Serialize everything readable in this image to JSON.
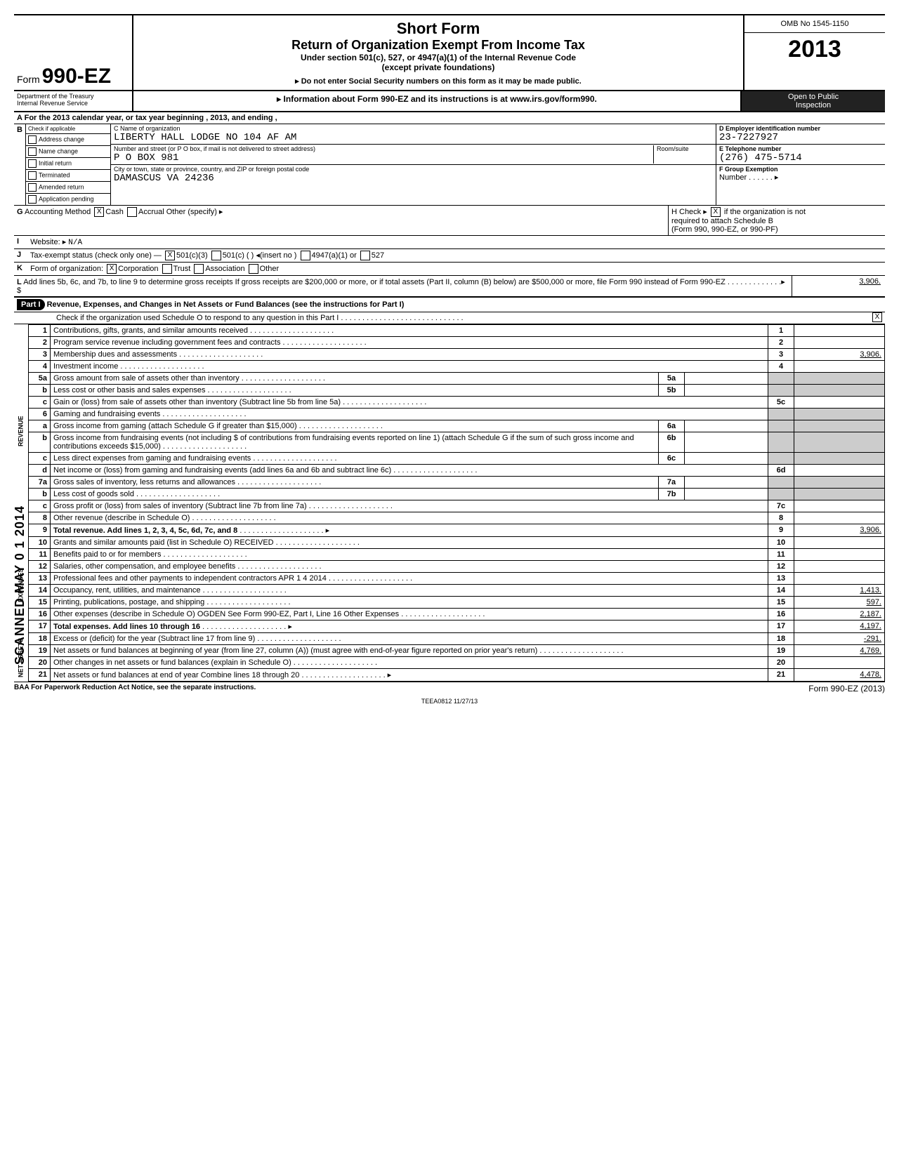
{
  "form": {
    "prefix": "Form",
    "number": "990-EZ",
    "title1": "Short Form",
    "title2": "Return of Organization Exempt From Income Tax",
    "subtitle1": "Under section 501(c), 527, or 4947(a)(1) of the Internal Revenue Code",
    "subtitle2": "(except private foundations)",
    "warn": "Do not enter Social Security numbers on this form as it may be made public.",
    "info": "Information about Form 990-EZ and its instructions is at www.irs.gov/form990.",
    "omb": "OMB No  1545-1150",
    "year": "2013",
    "dept1": "Department of the Treasury",
    "dept2": "Internal Revenue Service",
    "open1": "Open to Public",
    "open2": "Inspection"
  },
  "A": "For the 2013 calendar year, or tax year beginning                                                     , 2013, and ending                                      ,",
  "B": {
    "label": "Check if applicable",
    "items": [
      "Address change",
      "Name change",
      "Initial return",
      "Terminated",
      "Amended return",
      "Application pending"
    ]
  },
  "C": {
    "name_lbl": "C   Name of organization",
    "name": "LIBERTY HALL LODGE NO 104 AF AM",
    "street_lbl": "Number and street (or P O  box, if mail is not delivered to street address)",
    "room_lbl": "Room/suite",
    "street": "P O BOX 981",
    "city_lbl": "City or town, state or province, country, and ZIP or foreign postal code",
    "city": "DAMASCUS                                                              VA  24236"
  },
  "D": {
    "lbl": "D   Employer identification number",
    "val": "23-7227927"
  },
  "E": {
    "lbl": "E   Telephone number",
    "val": "(276) 475-5714"
  },
  "F": {
    "lbl": "F   Group Exemption",
    "lbl2": "Number . . . . . .    ▸"
  },
  "G": {
    "lead": "G",
    "label": "Accounting Method",
    "opts": [
      "Cash",
      "Accrual",
      "Other (specify)  ▸"
    ],
    "checked": 0
  },
  "I": {
    "lead": "I",
    "label": "Website: ▸",
    "val": "N/A"
  },
  "J": {
    "lead": "J",
    "label": "Tax-exempt status (check only one) —",
    "opts": [
      "501(c)(3)",
      "501(c) (          )  ◂(insert no )",
      "4947(a)(1) or",
      "527"
    ],
    "checked": 0
  },
  "K": {
    "lead": "K",
    "label": "Form of organization:",
    "opts": [
      "Corporation",
      "Trust",
      "Association",
      "Other"
    ],
    "checked": 0
  },
  "H": {
    "text1": "H  Check ▸",
    "text2": "if the organization is not",
    "text3": "required to attach Schedule B",
    "text4": "(Form 990, 990-EZ, or 990-PF)"
  },
  "L": {
    "lead": "L",
    "text": "Add lines 5b, 6c, and 7b, to line 9 to determine gross receipts  If gross receipts are $200,000 or more, or if total assets (Part II, column (B) below) are $500,000 or more, file Form 990 instead of Form 990-EZ . . . . . . . . . . . . .▸ $",
    "val": "3,906."
  },
  "part1": {
    "head": "Part I",
    "title": "Revenue, Expenses, and Changes in Net Assets or Fund Balances (see the instructions for Part I)",
    "check": "Check if the organization used Schedule O to respond to any question in this Part I . . . . . . . . . . . . . . . . . . . . . . . . . . . . .",
    "checkval": "X"
  },
  "sections": {
    "revenue": "REVENUE",
    "expenses": "EXPENSES",
    "assets": "NET ASSETS"
  },
  "stamp": {
    "scanned": "SCANNED MAY 0 1 2014",
    "received": "RECEIVED",
    "date": "APR 1 4 2014",
    "ogden": "OGDEN",
    "ogden2": "See Form 990-EZ, Part I, Line 16 Other Expenses"
  },
  "rows": [
    {
      "n": "1",
      "d": "Contributions, gifts, grants, and similar amounts received",
      "num": "1",
      "amt": ""
    },
    {
      "n": "2",
      "d": "Program service revenue including government fees and contracts",
      "num": "2",
      "amt": ""
    },
    {
      "n": "3",
      "d": "Membership dues and assessments",
      "num": "3",
      "amt": "3,906."
    },
    {
      "n": "4",
      "d": "Investment income",
      "num": "4",
      "amt": ""
    },
    {
      "n": "5a",
      "d": "Gross amount from sale of assets other than inventory",
      "sub": "5a",
      "samt": ""
    },
    {
      "n": "b",
      "d": "Less  cost or other basis and sales expenses",
      "sub": "5b",
      "samt": ""
    },
    {
      "n": "c",
      "d": "Gain or (loss) from sale of assets other than inventory (Subtract line 5b from line 5a)",
      "num": "5c",
      "amt": ""
    },
    {
      "n": "6",
      "d": "Gaming and fundraising events",
      "head": true
    },
    {
      "n": "a",
      "d": "Gross income from gaming (attach Schedule G if greater than $15,000)",
      "sub": "6a",
      "samt": ""
    },
    {
      "n": "b",
      "d": "Gross income from fundraising events (not including     $                                  of contributions from fundraising events reported on line 1) (attach Schedule G if the sum of such gross income and contributions exceeds $15,000)",
      "sub": "6b",
      "samt": ""
    },
    {
      "n": "c",
      "d": "Less  direct expenses from gaming and fundraising events",
      "sub": "6c",
      "samt": ""
    },
    {
      "n": "d",
      "d": "Net income or (loss) from gaming and fundraising events (add lines 6a and 6b and subtract line 6c)",
      "num": "6d",
      "amt": ""
    },
    {
      "n": "7a",
      "d": "Gross sales of inventory, less returns and allowances",
      "sub": "7a",
      "samt": ""
    },
    {
      "n": "b",
      "d": "Less  cost of goods sold",
      "sub": "7b",
      "samt": ""
    },
    {
      "n": "c",
      "d": "Gross profit or (loss) from sales of inventory (Subtract line 7b from line 7a)",
      "num": "7c",
      "amt": ""
    },
    {
      "n": "8",
      "d": "Other revenue (describe in Schedule O)",
      "num": "8",
      "amt": ""
    },
    {
      "n": "9",
      "d": "Total revenue. Add lines 1, 2, 3, 4, 5c, 6d, 7c, and 8",
      "num": "9",
      "amt": "3,906.",
      "bold": true,
      "arrow": true
    },
    {
      "n": "10",
      "d": "Grants and similar amounts paid (list in Schedule O)",
      "num": "10",
      "amt": "",
      "stamp": "RECEIVED"
    },
    {
      "n": "11",
      "d": "Benefits paid to or for members",
      "num": "11",
      "amt": ""
    },
    {
      "n": "12",
      "d": "Salaries, other compensation, and employee benefits",
      "num": "12",
      "amt": ""
    },
    {
      "n": "13",
      "d": "Professional fees and other payments to independent contractors   APR 1 4 2014",
      "num": "13",
      "amt": ""
    },
    {
      "n": "14",
      "d": "Occupancy, rent, utilities, and maintenance",
      "num": "14",
      "amt": "1,413."
    },
    {
      "n": "15",
      "d": "Printing, publications, postage, and shipping",
      "num": "15",
      "amt": "597."
    },
    {
      "n": "16",
      "d": "Other expenses (describe in Schedule O)                OGDEN See Form 990-EZ, Part I, Line 16 Other Expenses",
      "num": "16",
      "amt": "2,187."
    },
    {
      "n": "17",
      "d": "Total expenses. Add lines 10 through 16",
      "num": "17",
      "amt": "4,197.",
      "bold": true,
      "arrow": true
    },
    {
      "n": "18",
      "d": "Excess or (deficit) for the year (Subtract line 17 from line 9)",
      "num": "18",
      "amt": "-291."
    },
    {
      "n": "19",
      "d": "Net assets or fund balances at beginning of year (from line 27, column (A)) (must agree with end-of-year figure reported on prior year's return)",
      "num": "19",
      "amt": "4,769."
    },
    {
      "n": "20",
      "d": "Other changes in net assets or fund balances (explain in Schedule O)",
      "num": "20",
      "amt": ""
    },
    {
      "n": "21",
      "d": "Net assets or fund balances at end of year  Combine lines 18 through 20",
      "num": "21",
      "amt": "4,478.",
      "arrow": true
    }
  ],
  "foot": {
    "left": "BAA  For Paperwork Reduction Act Notice, see the separate instructions.",
    "right": "Form 990-EZ (2013)",
    "tee": "TEEA0812   11/27/13"
  }
}
